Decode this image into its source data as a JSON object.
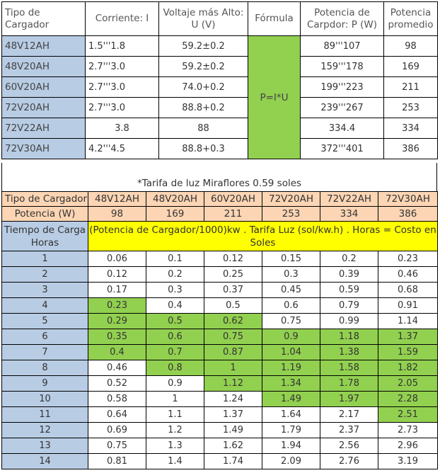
{
  "top_table": {
    "headers": {
      "tipo": "Tipo de Cargador",
      "corriente": "Corriente:  I",
      "voltaje": "Voltaje más Alto: U (V)",
      "formula": "Fórmula",
      "potencia": "Potencia de Carpdor: P (W)",
      "promedio": "Potencia promedio"
    },
    "formula_value": "P=I*U",
    "rows": [
      {
        "name": "48V12AH",
        "corriente": "1.5'''1.8",
        "voltaje": "59.2±0.2",
        "potencia": "89'''107",
        "promedio": "98"
      },
      {
        "name": "48V20AH",
        "corriente": "2.7'''3.0",
        "voltaje": "59.2±0.2",
        "potencia": "159'''178",
        "promedio": "169"
      },
      {
        "name": "60V20AH",
        "corriente": "2.7'''3.0",
        "voltaje": "74.0+0.2",
        "potencia": "199'''223",
        "promedio": "211"
      },
      {
        "name": "72V20AH",
        "corriente": "2.7'''3.0",
        "voltaje": "88.8+0.2",
        "potencia": "239'''267",
        "promedio": "253"
      },
      {
        "name": "72V22AH",
        "corriente": "3.8",
        "voltaje": "88",
        "potencia": "334.4",
        "promedio": "334"
      },
      {
        "name": "72V30AH",
        "corriente": "4.2'''4.5",
        "voltaje": "88.8+0.3",
        "potencia": "372'''401",
        "promedio": "386"
      }
    ]
  },
  "tariff_note": "*Tarifa de luz Miraflores 0.59 soles",
  "cost_table": {
    "tipo_label": "Tipo de Cargador",
    "chargers": [
      "48V12AH",
      "48V20AH",
      "60V20AH",
      "72V20AH",
      "72V22AH",
      "72V30AH"
    ],
    "potencia_label": "Potencia (W)",
    "potencias": [
      "98",
      "169",
      "211",
      "253",
      "334",
      "386"
    ],
    "tiempo_label": "Tiempo de Carga Horas",
    "formula_text": "(Potencia de Cargador/1000)kw . Tarifa Luz (sol/kw.h) . Horas = Costo en Soles",
    "highlight_color": "#92d050",
    "rows": [
      {
        "h": "1",
        "v": [
          "0.06",
          "0.1",
          "0.12",
          "0.15",
          "0.2",
          "0.23"
        ],
        "g": [
          0,
          0,
          0,
          0,
          0,
          0
        ]
      },
      {
        "h": "2",
        "v": [
          "0.12",
          "0.2",
          "0.25",
          "0.3",
          "0.39",
          "0.46"
        ],
        "g": [
          0,
          0,
          0,
          0,
          0,
          0
        ]
      },
      {
        "h": "3",
        "v": [
          "0.17",
          "0.3",
          "0.37",
          "0.45",
          "0.59",
          "0.68"
        ],
        "g": [
          0,
          0,
          0,
          0,
          0,
          0
        ]
      },
      {
        "h": "4",
        "v": [
          "0.23",
          "0.4",
          "0.5",
          "0.6",
          "0.79",
          "0.91"
        ],
        "g": [
          1,
          0,
          0,
          0,
          0,
          0
        ]
      },
      {
        "h": "5",
        "v": [
          "0.29",
          "0.5",
          "0.62",
          "0.75",
          "0.99",
          "1.14"
        ],
        "g": [
          1,
          1,
          1,
          0,
          0,
          0
        ]
      },
      {
        "h": "6",
        "v": [
          "0.35",
          "0.6",
          "0.75",
          "0.9",
          "1.18",
          "1.37"
        ],
        "g": [
          1,
          1,
          1,
          1,
          1,
          1
        ]
      },
      {
        "h": "7",
        "v": [
          "0.4",
          "0.7",
          "0.87",
          "1.04",
          "1.38",
          "1.59"
        ],
        "g": [
          1,
          1,
          1,
          1,
          1,
          1
        ]
      },
      {
        "h": "8",
        "v": [
          "0.46",
          "0.8",
          "1",
          "1.19",
          "1.58",
          "1.82"
        ],
        "g": [
          0,
          1,
          1,
          1,
          1,
          1
        ]
      },
      {
        "h": "9",
        "v": [
          "0.52",
          "0.9",
          "1.12",
          "1.34",
          "1.78",
          "2.05"
        ],
        "g": [
          0,
          0,
          1,
          1,
          1,
          1
        ]
      },
      {
        "h": "10",
        "v": [
          "0.58",
          "1",
          "1.24",
          "1.49",
          "1.97",
          "2.28"
        ],
        "g": [
          0,
          0,
          0,
          1,
          1,
          1
        ]
      },
      {
        "h": "11",
        "v": [
          "0.64",
          "1.1",
          "1.37",
          "1.64",
          "2.17",
          "2.51"
        ],
        "g": [
          0,
          0,
          0,
          0,
          0,
          1
        ]
      },
      {
        "h": "12",
        "v": [
          "0.69",
          "1.2",
          "1.49",
          "1.79",
          "2.37",
          "2.73"
        ],
        "g": [
          0,
          0,
          0,
          0,
          0,
          0
        ]
      },
      {
        "h": "13",
        "v": [
          "0.75",
          "1.3",
          "1.62",
          "1.94",
          "2.56",
          "2.96"
        ],
        "g": [
          0,
          0,
          0,
          0,
          0,
          0
        ]
      },
      {
        "h": "14",
        "v": [
          "0.81",
          "1.4",
          "1.74",
          "2.09",
          "2.76",
          "3.19"
        ],
        "g": [
          0,
          0,
          0,
          0,
          0,
          0
        ]
      }
    ]
  }
}
